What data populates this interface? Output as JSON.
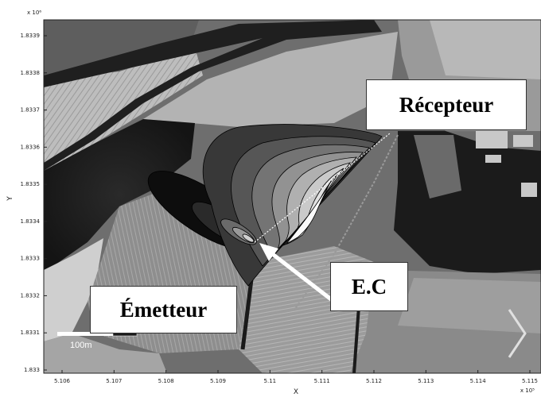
{
  "axes": {
    "x_label": "X",
    "y_label": "Y",
    "x_exponent": "x 10⁵",
    "y_exponent": "x 10⁶",
    "x_ticks": [
      "5.106",
      "5.107",
      "5.108",
      "5.109",
      "5.11",
      "5.111",
      "5.112",
      "5.113",
      "5.114",
      "5.115"
    ],
    "y_ticks": [
      "1.8339",
      "1.8338",
      "1.8337",
      "1.8336",
      "1.8335",
      "1.8334",
      "1.8333",
      "1.8332",
      "1.8331",
      "1.833"
    ]
  },
  "labels": {
    "recepteur": "Récepteur",
    "ec": "E.C",
    "emetteur": "Émetteur"
  },
  "scale_bar": {
    "text": "100m"
  },
  "colors": {
    "label_bg": "#ffffff",
    "arrow": "#ffffff",
    "axis": "#222222"
  }
}
